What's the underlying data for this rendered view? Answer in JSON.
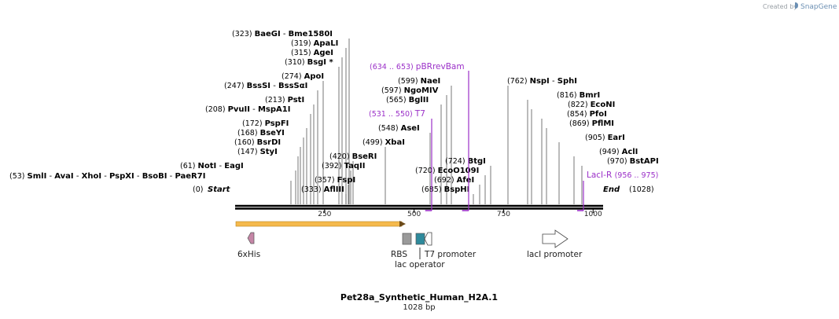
{
  "credit": {
    "prefix": "Created by",
    "brand": "SnapGene"
  },
  "title": "Pet28a_Synthetic_Human_H2A.1",
  "length_label": "1028 bp",
  "ticks": [
    {
      "bp": 250,
      "label": "250"
    },
    {
      "bp": 500,
      "label": "500"
    },
    {
      "bp": 750,
      "label": "750"
    },
    {
      "bp": 1000,
      "label": "1000"
    }
  ],
  "ends": {
    "start": "Start",
    "start_pos": "(0)",
    "end": "End",
    "end_pos": "(1028)"
  },
  "sites": [
    {
      "pos": "(53)",
      "names": [
        "SmlI",
        "AvaI",
        "XhoI",
        "PspXI",
        "BsoBI",
        "PaeR7I"
      ],
      "bp": [
        53
      ]
    },
    {
      "pos": "(61)",
      "names": [
        "NotI",
        "EagI"
      ],
      "bp": [
        61
      ]
    },
    {
      "pos": "(147)",
      "names": [
        "StyI"
      ],
      "bp": [
        147
      ]
    },
    {
      "pos": "(160)",
      "names": [
        "BsrDI"
      ],
      "bp": [
        160
      ]
    },
    {
      "pos": "(168)",
      "names": [
        "BseYI"
      ],
      "bp": [
        168
      ]
    },
    {
      "pos": "(172)",
      "names": [
        "PspFI"
      ],
      "bp": [
        172
      ]
    },
    {
      "pos": "(208)",
      "names": [
        "PvuII",
        "MspA1I"
      ],
      "bp": [
        208
      ]
    },
    {
      "pos": "(213)",
      "names": [
        "PstI"
      ],
      "bp": [
        213
      ]
    },
    {
      "pos": "(247)",
      "names": [
        "BssSI",
        "BssSαI"
      ],
      "bp": [
        247
      ]
    },
    {
      "pos": "(274)",
      "names": [
        "ApoI"
      ],
      "bp": [
        274
      ]
    },
    {
      "pos": "(310)",
      "names": [
        "BsgI *"
      ],
      "bp": [
        310
      ]
    },
    {
      "pos": "(315)",
      "names": [
        "AgeI"
      ],
      "bp": [
        315
      ]
    },
    {
      "pos": "(319)",
      "names": [
        "ApaLI"
      ],
      "bp": [
        319
      ]
    },
    {
      "pos": "(323)",
      "names": [
        "BaeGI",
        "Bme1580I"
      ],
      "bp": [
        323
      ]
    },
    {
      "pos": "(333)",
      "names": [
        "AflIII"
      ],
      "bp": [
        333
      ]
    },
    {
      "pos": "(357)",
      "names": [
        "FspI"
      ],
      "bp": [
        357
      ]
    },
    {
      "pos": "(392)",
      "names": [
        "TaqII"
      ],
      "bp": [
        392
      ]
    },
    {
      "pos": "(420)",
      "names": [
        "BseRI"
      ],
      "bp": [
        420
      ]
    },
    {
      "pos": "(499)",
      "names": [
        "XbaI"
      ],
      "bp": [
        499
      ]
    },
    {
      "pos": "(548)",
      "names": [
        "AseI"
      ],
      "bp": [
        548
      ]
    },
    {
      "pos": "(565)",
      "names": [
        "BglII"
      ],
      "bp": [
        565
      ]
    },
    {
      "pos": "(597)",
      "names": [
        "NgoMIV"
      ],
      "bp": [
        597
      ]
    },
    {
      "pos": "(599)",
      "names": [
        "NaeI"
      ],
      "bp": [
        599
      ]
    },
    {
      "pos": "(685)",
      "names": [
        "BspHI"
      ],
      "bp": [
        685
      ]
    },
    {
      "pos": "(692)",
      "names": [
        "AfeI"
      ],
      "bp": [
        692
      ]
    },
    {
      "pos": "(720)",
      "names": [
        "EcoO109I"
      ],
      "bp": [
        720
      ]
    },
    {
      "pos": "(724)",
      "names": [
        "BtgI"
      ],
      "bp": [
        724
      ]
    },
    {
      "pos": "(762)",
      "names": [
        "NspI",
        "SphI"
      ],
      "bp": [
        762
      ]
    },
    {
      "pos": "(816)",
      "names": [
        "BmrI"
      ],
      "bp": [
        816
      ]
    },
    {
      "pos": "(822)",
      "names": [
        "EcoNI"
      ],
      "bp": [
        822
      ]
    },
    {
      "pos": "(854)",
      "names": [
        "PfoI"
      ],
      "bp": [
        854
      ]
    },
    {
      "pos": "(869)",
      "names": [
        "PflMI"
      ],
      "bp": [
        869
      ]
    },
    {
      "pos": "(905)",
      "names": [
        "EarI"
      ],
      "bp": [
        905
      ]
    },
    {
      "pos": "(949)",
      "names": [
        "AclI"
      ],
      "bp": [
        949
      ]
    },
    {
      "pos": "(970)",
      "names": [
        "BstAPI"
      ],
      "bp": [
        970
      ]
    }
  ],
  "primers": [
    {
      "name": "pBRrevBam",
      "range": "(634 .. 653)",
      "start": 634,
      "end": 653,
      "color": "#9b30c8"
    },
    {
      "name": "T7",
      "range": "(531 .. 550)",
      "start": 531,
      "end": 550,
      "color": "#9b30c8"
    },
    {
      "name": "LacI-R",
      "range": "(956 .. 975)",
      "start": 956,
      "end": 975,
      "color": "#9b30c8"
    }
  ],
  "features": [
    {
      "name": "6xHis",
      "shape": "arrow-left",
      "color": "#c586a6"
    },
    {
      "name": "RBS",
      "shape": "box",
      "color": "#9a9a9a"
    },
    {
      "name": "lac operator",
      "shape": "box",
      "color": "#2e8a9c"
    },
    {
      "name": "T7 promoter",
      "shape": "arrow-left",
      "color": "#ffffff"
    },
    {
      "name": "lacI promoter",
      "shape": "arrow-right",
      "color": "#ffffff"
    }
  ],
  "orf": {
    "color": "#f5b94c",
    "direction": "right"
  }
}
